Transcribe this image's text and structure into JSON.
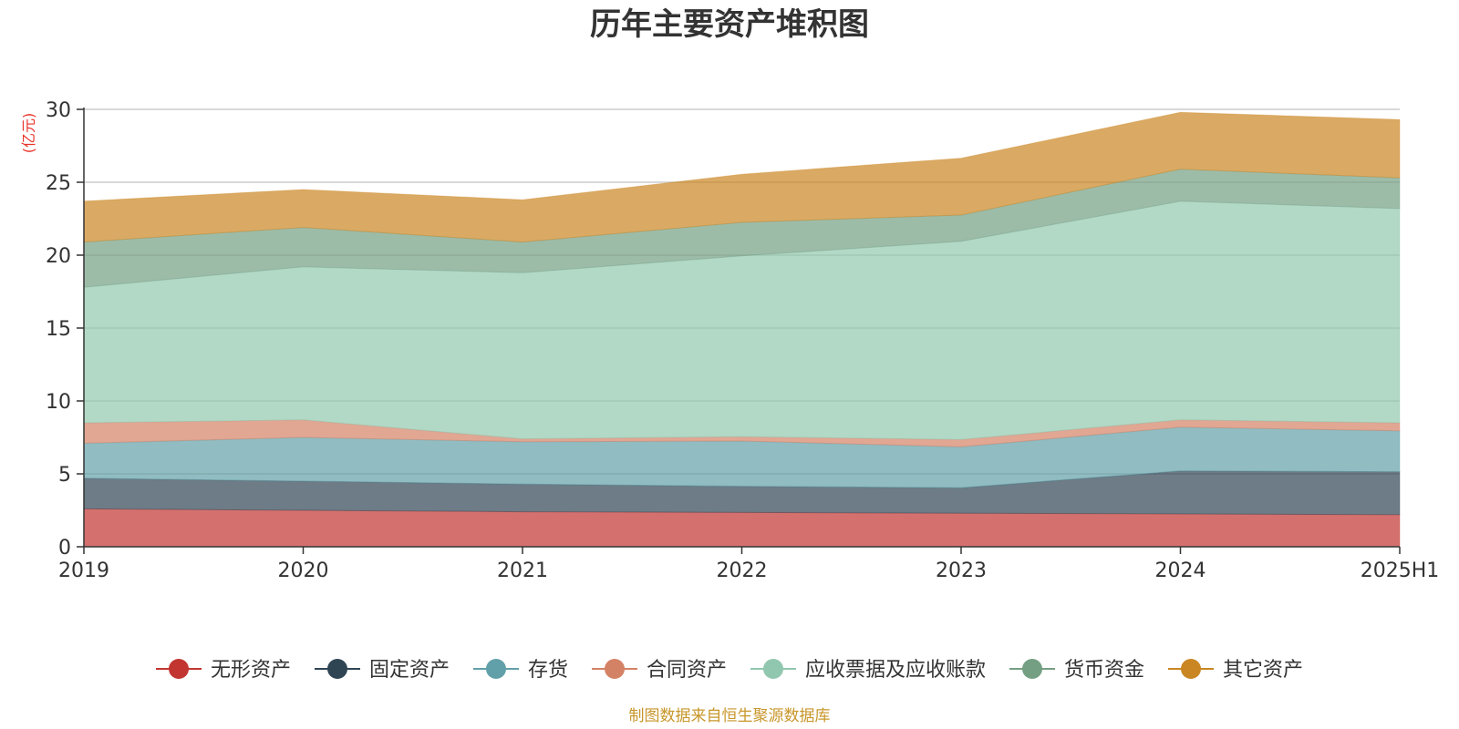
{
  "chart_data": {
    "type": "area",
    "stacked": true,
    "title": "历年主要资产堆积图",
    "ylabel": "(亿元)",
    "ylim": [
      0,
      30
    ],
    "yticks": [
      0,
      5,
      10,
      15,
      20,
      25,
      30
    ],
    "categories": [
      "2019",
      "2020",
      "2021",
      "2022",
      "2023",
      "2024",
      "2025H1"
    ],
    "series": [
      {
        "name": "无形资产",
        "color": "#c23531",
        "values": [
          2.6,
          2.5,
          2.4,
          2.35,
          2.3,
          2.25,
          2.2
        ]
      },
      {
        "name": "固定资产",
        "color": "#2f4554",
        "values": [
          2.1,
          2.0,
          1.9,
          1.8,
          1.75,
          2.95,
          2.95
        ]
      },
      {
        "name": "存货",
        "color": "#61a0a8",
        "values": [
          2.4,
          3.0,
          2.9,
          3.1,
          2.8,
          3.0,
          2.8
        ]
      },
      {
        "name": "合同资产",
        "color": "#d48265",
        "values": [
          1.4,
          1.2,
          0.2,
          0.3,
          0.5,
          0.5,
          0.55
        ]
      },
      {
        "name": "应收票据及应收账款",
        "color": "#91c7ae",
        "values": [
          9.3,
          10.5,
          11.4,
          12.4,
          13.6,
          15.0,
          14.7
        ]
      },
      {
        "name": "货币资金",
        "color": "#749f83",
        "values": [
          3.1,
          2.7,
          2.1,
          2.3,
          1.8,
          2.2,
          2.1
        ]
      },
      {
        "name": "其它资产",
        "color": "#ca8622",
        "values": [
          2.8,
          2.6,
          2.9,
          3.3,
          3.9,
          3.9,
          4.0
        ]
      }
    ]
  },
  "source_note": "制图数据来自恒生聚源数据库"
}
